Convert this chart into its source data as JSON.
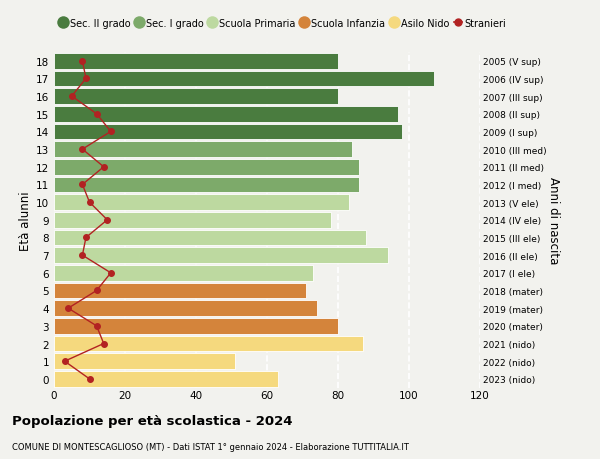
{
  "ages": [
    18,
    17,
    16,
    15,
    14,
    13,
    12,
    11,
    10,
    9,
    8,
    7,
    6,
    5,
    4,
    3,
    2,
    1,
    0
  ],
  "right_labels": [
    "2005 (V sup)",
    "2006 (IV sup)",
    "2007 (III sup)",
    "2008 (II sup)",
    "2009 (I sup)",
    "2010 (III med)",
    "2011 (II med)",
    "2012 (I med)",
    "2013 (V ele)",
    "2014 (IV ele)",
    "2015 (III ele)",
    "2016 (II ele)",
    "2017 (I ele)",
    "2018 (mater)",
    "2019 (mater)",
    "2020 (mater)",
    "2021 (nido)",
    "2022 (nido)",
    "2023 (nido)"
  ],
  "bar_values": [
    80,
    107,
    80,
    97,
    98,
    84,
    86,
    86,
    83,
    78,
    88,
    94,
    73,
    71,
    74,
    80,
    87,
    51,
    63
  ],
  "bar_colors": [
    "#4a7c3f",
    "#4a7c3f",
    "#4a7c3f",
    "#4a7c3f",
    "#4a7c3f",
    "#7daa6a",
    "#7daa6a",
    "#7daa6a",
    "#bdd9a0",
    "#bdd9a0",
    "#bdd9a0",
    "#bdd9a0",
    "#bdd9a0",
    "#d4843b",
    "#d4843b",
    "#d4843b",
    "#f5d97e",
    "#f5d97e",
    "#f5d97e"
  ],
  "stranieri_values": [
    8,
    9,
    5,
    12,
    16,
    8,
    14,
    8,
    10,
    15,
    9,
    8,
    16,
    12,
    4,
    12,
    14,
    3,
    10
  ],
  "stranieri_color": "#b22222",
  "legend_labels": [
    "Sec. II grado",
    "Sec. I grado",
    "Scuola Primaria",
    "Scuola Infanzia",
    "Asilo Nido",
    "Stranieri"
  ],
  "legend_colors": [
    "#4a7c3f",
    "#7daa6a",
    "#bdd9a0",
    "#d4843b",
    "#f5d97e",
    "#b22222"
  ],
  "ylabel_left": "Età alunni",
  "ylabel_right": "Anni di nascita",
  "xlim": [
    0,
    120
  ],
  "xticks": [
    0,
    20,
    40,
    60,
    80,
    100,
    120
  ],
  "title": "Popolazione per età scolastica - 2024",
  "subtitle": "COMUNE DI MONTESCAGLIOSO (MT) - Dati ISTAT 1° gennaio 2024 - Elaborazione TUTTITALIA.IT",
  "background_color": "#f2f2ee",
  "grid_color": "#ffffff"
}
